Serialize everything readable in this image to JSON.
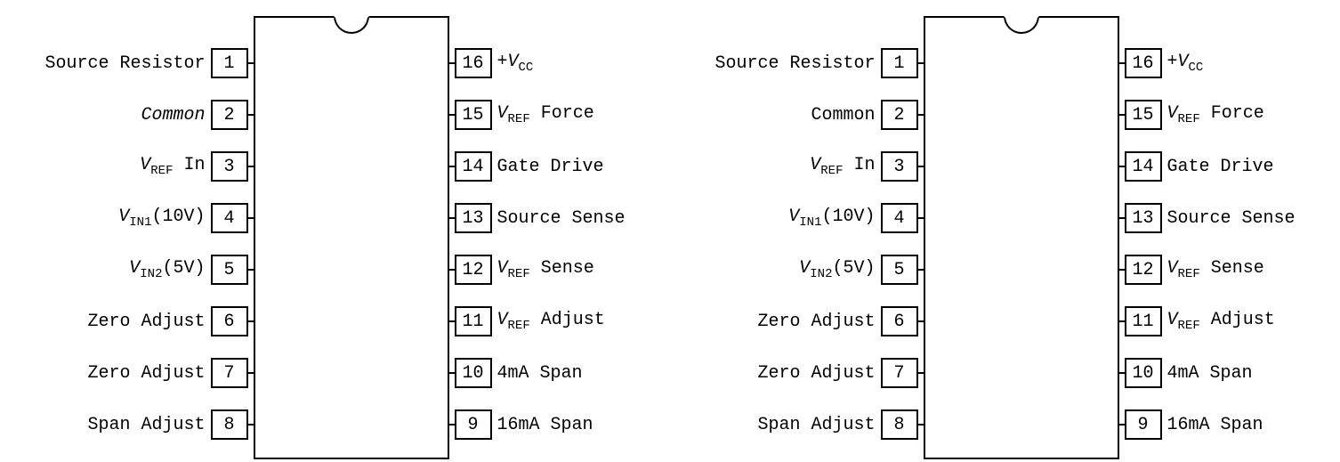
{
  "diagram": {
    "chips": [
      {
        "left_pins": [
          {
            "num": "1",
            "label": [
              {
                "t": "Source Resistor"
              }
            ]
          },
          {
            "num": "2",
            "label": [
              {
                "t": "Common",
                "ital": true
              }
            ]
          },
          {
            "num": "3",
            "label": [
              {
                "t": "V",
                "ital": true
              },
              {
                "t": "REF",
                "sub": true
              },
              {
                "t": " In"
              }
            ]
          },
          {
            "num": "4",
            "label": [
              {
                "t": "V",
                "ital": true
              },
              {
                "t": "IN1",
                "sub": true
              },
              {
                "t": "(10V)"
              }
            ]
          },
          {
            "num": "5",
            "label": [
              {
                "t": "V",
                "ital": true
              },
              {
                "t": "IN2",
                "sub": true
              },
              {
                "t": "(5V)"
              }
            ]
          },
          {
            "num": "6",
            "label": [
              {
                "t": "Zero Adjust"
              }
            ]
          },
          {
            "num": "7",
            "label": [
              {
                "t": "Zero Adjust"
              }
            ]
          },
          {
            "num": "8",
            "label": [
              {
                "t": "Span Adjust"
              }
            ]
          }
        ],
        "right_pins": [
          {
            "num": "16",
            "label": [
              {
                "t": "+"
              },
              {
                "t": "V",
                "ital": true
              },
              {
                "t": "CC",
                "sub": true
              }
            ]
          },
          {
            "num": "15",
            "label": [
              {
                "t": "V",
                "ital": true
              },
              {
                "t": "REF",
                "sub": true
              },
              {
                "t": " Force"
              }
            ]
          },
          {
            "num": "14",
            "label": [
              {
                "t": "Gate Drive"
              }
            ]
          },
          {
            "num": "13",
            "label": [
              {
                "t": "Source Sense"
              }
            ]
          },
          {
            "num": "12",
            "label": [
              {
                "t": "V",
                "ital": true
              },
              {
                "t": "REF",
                "sub": true
              },
              {
                "t": " Sense"
              }
            ]
          },
          {
            "num": "11",
            "label": [
              {
                "t": "V",
                "ital": true
              },
              {
                "t": "REF",
                "sub": true
              },
              {
                "t": " Adjust"
              }
            ]
          },
          {
            "num": "10",
            "label": [
              {
                "t": "4mA Span"
              }
            ]
          },
          {
            "num": "9",
            "label": [
              {
                "t": "16mA Span"
              }
            ]
          }
        ]
      },
      {
        "left_pins": [
          {
            "num": "1",
            "label": [
              {
                "t": "Source Resistor"
              }
            ]
          },
          {
            "num": "2",
            "label": [
              {
                "t": "Common"
              }
            ]
          },
          {
            "num": "3",
            "label": [
              {
                "t": "V",
                "ital": true
              },
              {
                "t": "REF",
                "sub": true
              },
              {
                "t": " In"
              }
            ]
          },
          {
            "num": "4",
            "label": [
              {
                "t": "V",
                "ital": true
              },
              {
                "t": "IN1",
                "sub": true
              },
              {
                "t": "(10V)"
              }
            ]
          },
          {
            "num": "5",
            "label": [
              {
                "t": "V",
                "ital": true
              },
              {
                "t": "IN2",
                "sub": true
              },
              {
                "t": "(5V)"
              }
            ]
          },
          {
            "num": "6",
            "label": [
              {
                "t": "Zero Adjust"
              }
            ]
          },
          {
            "num": "7",
            "label": [
              {
                "t": "Zero Adjust"
              }
            ]
          },
          {
            "num": "8",
            "label": [
              {
                "t": "Span Adjust"
              }
            ]
          }
        ],
        "right_pins": [
          {
            "num": "16",
            "label": [
              {
                "t": "+"
              },
              {
                "t": "V",
                "ital": true
              },
              {
                "t": "CC",
                "sub": true
              }
            ]
          },
          {
            "num": "15",
            "label": [
              {
                "t": "V",
                "ital": true
              },
              {
                "t": "REF",
                "sub": true
              },
              {
                "t": " Force"
              }
            ]
          },
          {
            "num": "14",
            "label": [
              {
                "t": "Gate Drive"
              }
            ]
          },
          {
            "num": "13",
            "label": [
              {
                "t": "Source Sense"
              }
            ]
          },
          {
            "num": "12",
            "label": [
              {
                "t": "V",
                "ital": true
              },
              {
                "t": "REF",
                "sub": true
              },
              {
                "t": " Sense"
              }
            ]
          },
          {
            "num": "11",
            "label": [
              {
                "t": "V",
                "ital": true
              },
              {
                "t": "REF",
                "sub": true
              },
              {
                "t": " Adjust"
              }
            ]
          },
          {
            "num": "10",
            "label": [
              {
                "t": "4mA Span"
              }
            ]
          },
          {
            "num": "9",
            "label": [
              {
                "t": "16mA Span"
              }
            ]
          }
        ]
      }
    ],
    "style": {
      "chip_border_color": "#000000",
      "background_color": "#ffffff",
      "font_family": "Courier New",
      "chip_body_width": 220,
      "chip_body_height": 498,
      "pinbox_width": 42,
      "pinbox_height": 34,
      "row_gap": 24,
      "label_fontsize": 20,
      "notch_width": 40,
      "notch_height": 20
    }
  }
}
